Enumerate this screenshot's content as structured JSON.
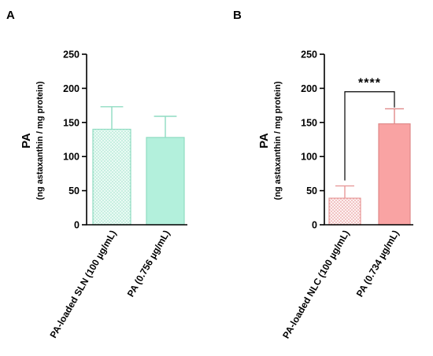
{
  "chart_data": [
    {
      "panel": "A",
      "type": "bar",
      "ylabel": "PA",
      "ylabel_sub": "(ng astaxanthin / mg protein)",
      "ylim": [
        0,
        250
      ],
      "yticks": [
        0,
        50,
        100,
        150,
        200,
        250
      ],
      "categories": [
        "PA-loaded SLN (100 µg/mL)",
        "PA (0.756 µg/mL)"
      ],
      "values": [
        140,
        128
      ],
      "errors": [
        33,
        31
      ],
      "colors": [
        "#bff0e0",
        "#b3f0dc"
      ],
      "edge_colors": [
        "#8fdcc2",
        "#8fdcc2"
      ],
      "patterns": [
        "dots",
        "solid"
      ],
      "significance": null
    },
    {
      "panel": "B",
      "type": "bar",
      "ylabel": "PA",
      "ylabel_sub": "(ng astaxanthin / mg protein)",
      "ylim": [
        0,
        250
      ],
      "yticks": [
        0,
        50,
        100,
        150,
        200,
        250
      ],
      "categories": [
        "PA-loaded NLC (100 µg/mL)",
        "PA (0.734 µg/mL)"
      ],
      "values": [
        39,
        148
      ],
      "errors": [
        18,
        22
      ],
      "colors": [
        "#fbe6e6",
        "#f9a3a3"
      ],
      "edge_colors": [
        "#e89a9a",
        "#e08a8a"
      ],
      "patterns": [
        "dots",
        "solid"
      ],
      "significance": {
        "label": "****",
        "between": [
          0,
          1
        ]
      }
    }
  ]
}
